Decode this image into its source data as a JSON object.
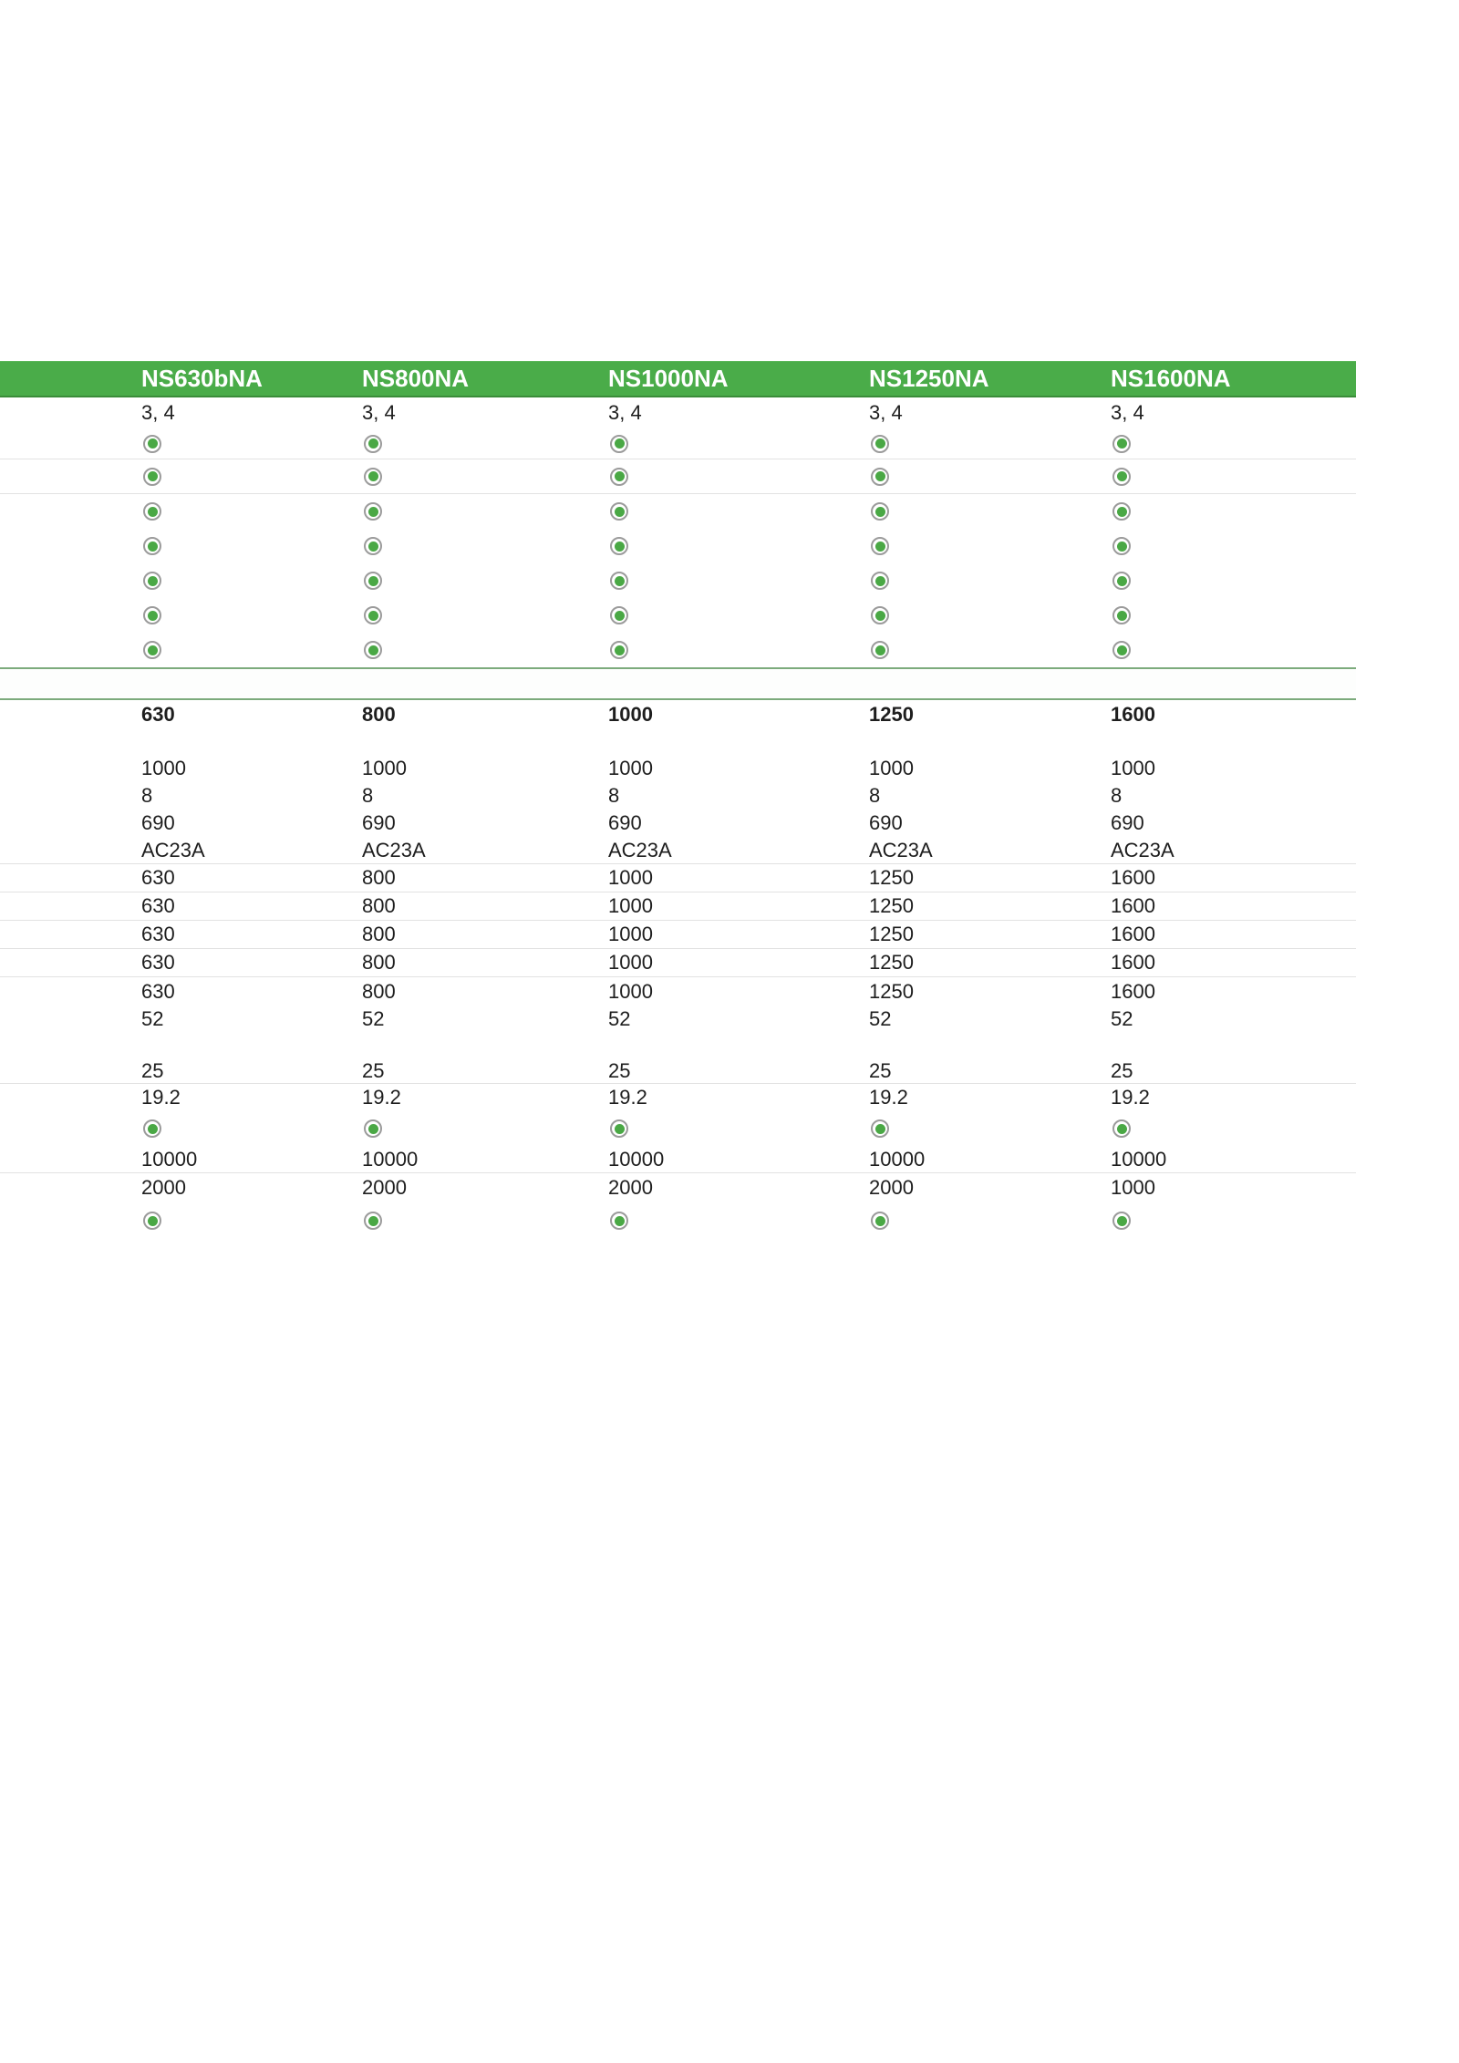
{
  "header": {
    "columns": [
      "NS630bNA",
      "NS800NA",
      "NS1000NA",
      "NS1250NA",
      "NS1600NA"
    ]
  },
  "colors": {
    "header_bg": "#4aac49",
    "header_text": "#ffffff",
    "body_text": "#1e1e1e",
    "row_separator": "#e2e2e2",
    "section_line": "#7cab7c",
    "indicator_ring": "#9b9b9b",
    "indicator_dot": "#4aa845"
  },
  "sections": [
    {
      "name": "poles-availability",
      "rows": [
        {
          "type": "text",
          "values": [
            "3, 4",
            "3, 4",
            "3, 4",
            "3, 4",
            "3, 4"
          ]
        },
        {
          "type": "radio",
          "values": [
            true,
            true,
            true,
            true,
            true
          ]
        },
        {
          "type": "radio",
          "values": [
            true,
            true,
            true,
            true,
            true
          ]
        },
        {
          "type": "radio",
          "values": [
            true,
            true,
            true,
            true,
            true
          ]
        },
        {
          "type": "radio",
          "values": [
            true,
            true,
            true,
            true,
            true
          ]
        },
        {
          "type": "radio",
          "values": [
            true,
            true,
            true,
            true,
            true
          ]
        },
        {
          "type": "radio",
          "values": [
            true,
            true,
            true,
            true,
            true
          ]
        },
        {
          "type": "radio",
          "values": [
            true,
            true,
            true,
            true,
            true
          ]
        }
      ]
    },
    {
      "name": "characteristics",
      "rows": [
        {
          "type": "text",
          "bold": true,
          "values": [
            "630",
            "800",
            "1000",
            "1250",
            "1600"
          ]
        },
        {
          "type": "text",
          "values": [
            "1000",
            "1000",
            "1000",
            "1000",
            "1000"
          ]
        },
        {
          "type": "text",
          "values": [
            "8",
            "8",
            "8",
            "8",
            "8"
          ]
        },
        {
          "type": "text",
          "values": [
            "690",
            "690",
            "690",
            "690",
            "690"
          ]
        },
        {
          "type": "text",
          "values": [
            "AC23A",
            "AC23A",
            "AC23A",
            "AC23A",
            "AC23A"
          ]
        },
        {
          "type": "text",
          "values": [
            "630",
            "800",
            "1000",
            "1250",
            "1600"
          ]
        },
        {
          "type": "text",
          "values": [
            "630",
            "800",
            "1000",
            "1250",
            "1600"
          ]
        },
        {
          "type": "text",
          "values": [
            "630",
            "800",
            "1000",
            "1250",
            "1600"
          ]
        },
        {
          "type": "text",
          "values": [
            "630",
            "800",
            "1000",
            "1250",
            "1600"
          ]
        },
        {
          "type": "text",
          "values": [
            "630",
            "800",
            "1000",
            "1250",
            "1600"
          ]
        },
        {
          "type": "text",
          "values": [
            "52",
            "52",
            "52",
            "52",
            "52"
          ]
        },
        {
          "type": "text",
          "values": [
            "25",
            "25",
            "25",
            "25",
            "25"
          ]
        },
        {
          "type": "text",
          "values": [
            "19.2",
            "19.2",
            "19.2",
            "19.2",
            "19.2"
          ]
        },
        {
          "type": "radio",
          "values": [
            true,
            true,
            true,
            true,
            true
          ]
        },
        {
          "type": "text",
          "values": [
            "10000",
            "10000",
            "10000",
            "10000",
            "10000"
          ]
        },
        {
          "type": "text",
          "values": [
            "2000",
            "2000",
            "2000",
            "2000",
            "1000"
          ]
        },
        {
          "type": "radio",
          "values": [
            true,
            true,
            true,
            true,
            true
          ]
        }
      ]
    }
  ]
}
